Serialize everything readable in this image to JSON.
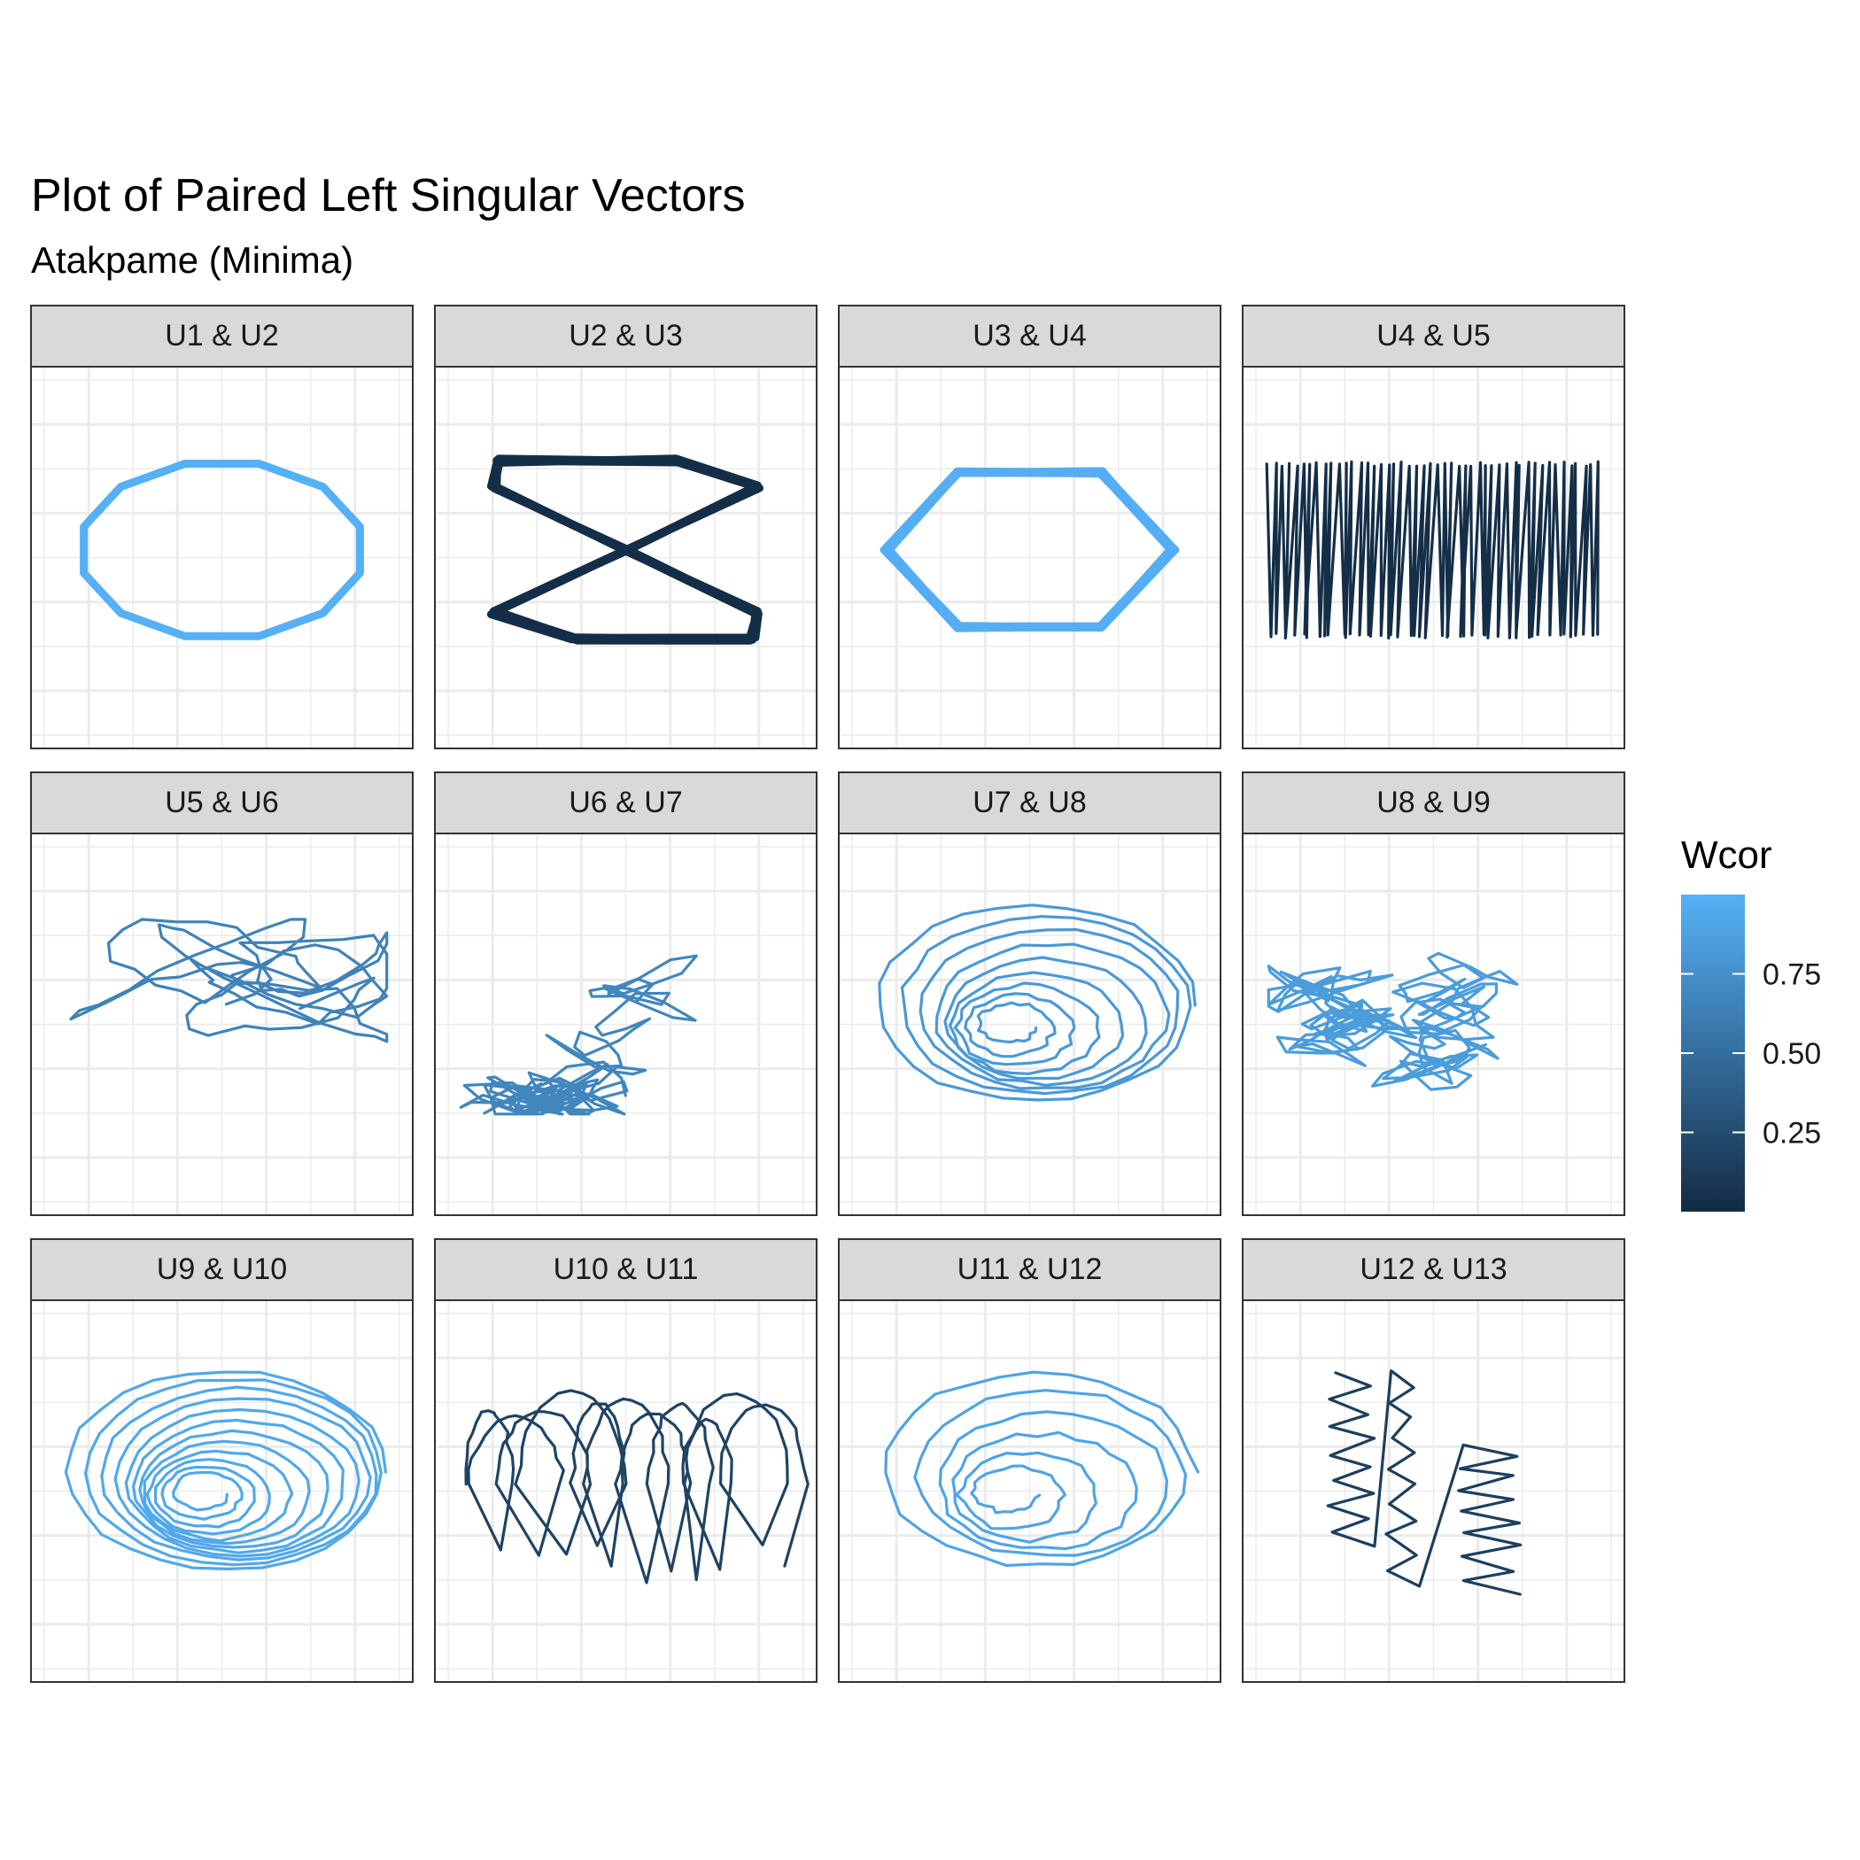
{
  "chart_data": {
    "type": "line",
    "title": "Plot of Paired Left Singular Vectors",
    "subtitle": "Atakpame (Minima)",
    "xlabel": "",
    "ylabel": "",
    "grid": true,
    "legend": {
      "title": "Wcor",
      "position": "right",
      "low_color": "#132B43",
      "high_color": "#56B1F7",
      "range": [
        0,
        1
      ],
      "tick_labels": [
        "0.25",
        "0.50",
        "0.75"
      ],
      "tick_values": [
        0.25,
        0.5,
        0.75
      ]
    },
    "facets": [
      {
        "label": "U1  &  U2",
        "wcor": 0.99,
        "shape": "polygon",
        "vertices": 12,
        "turns": 1,
        "noise": 0.0,
        "rotation": 15
      },
      {
        "label": "U2  &  U3",
        "wcor": 0.02,
        "shape": "figure8",
        "turns": 1,
        "noise": 0.0
      },
      {
        "label": "U3  &  U4",
        "wcor": 0.98,
        "shape": "polygon",
        "vertices": 6,
        "turns": 1,
        "noise": 0.03,
        "rotation": 0
      },
      {
        "label": "U4  &  U5",
        "wcor": 0.02,
        "shape": "zigzag",
        "turns": 48,
        "noise": 0.08
      },
      {
        "label": "U5  &  U6",
        "wcor": 0.65,
        "shape": "wander",
        "turns": 6,
        "noise": 0.35
      },
      {
        "label": "U6  &  U7",
        "wcor": 0.68,
        "shape": "scribble",
        "turns": 8,
        "noise": 0.3
      },
      {
        "label": "U7  &  U8",
        "wcor": 0.82,
        "shape": "spiral",
        "turns": 9,
        "noise": 0.12
      },
      {
        "label": "U8  &  U9",
        "wcor": 0.84,
        "shape": "scribble",
        "turns": 11,
        "noise": 0.25
      },
      {
        "label": "U9  &  U10",
        "wcor": 0.93,
        "shape": "spiral",
        "turns": 12,
        "noise": 0.08
      },
      {
        "label": "U10  &  U11",
        "wcor": 0.18,
        "shape": "loops",
        "turns": 11,
        "noise": 0.15
      },
      {
        "label": "U11  &  U12",
        "wcor": 0.9,
        "shape": "spiral",
        "turns": 6,
        "noise": 0.15
      },
      {
        "label": "U12  &  U13",
        "wcor": 0.15,
        "shape": "columns",
        "turns": 4,
        "noise": 0.3
      }
    ]
  }
}
